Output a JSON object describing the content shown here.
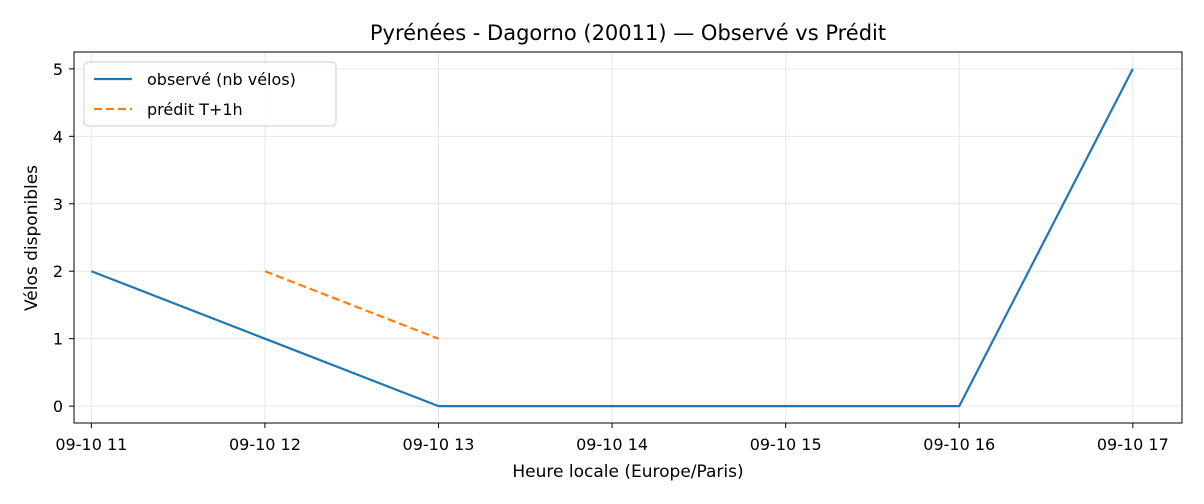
{
  "chart_data": {
    "type": "line",
    "title": "Pyrénées - Dagorno (20011) — Observé vs Prédit",
    "xlabel": "Heure locale (Europe/Paris)",
    "ylabel": "Vélos disponibles",
    "x_ticks": [
      "09-10 11",
      "09-10 12",
      "09-10 13",
      "09-10 14",
      "09-10 15",
      "09-10 16",
      "09-10 17"
    ],
    "xlim": [
      "09-10 10:54",
      "09-10 17:17"
    ],
    "y_ticks": [
      0,
      1,
      2,
      3,
      4,
      5
    ],
    "ylim": [
      -0.25,
      5.25
    ],
    "grid": true,
    "legend_position": "top-left",
    "series": [
      {
        "name": "observé (nb vélos)",
        "style": "solid",
        "color": "#1f77b4",
        "x": [
          "09-10 11",
          "09-10 12",
          "09-10 13",
          "09-10 14",
          "09-10 15",
          "09-10 16",
          "09-10 17"
        ],
        "y": [
          2,
          1,
          0,
          0,
          0,
          0,
          5
        ]
      },
      {
        "name": "prédit T+1h",
        "style": "dashed",
        "color": "#ff7f0e",
        "x": [
          "09-10 12",
          "09-10 13"
        ],
        "y": [
          2,
          1
        ]
      }
    ]
  }
}
